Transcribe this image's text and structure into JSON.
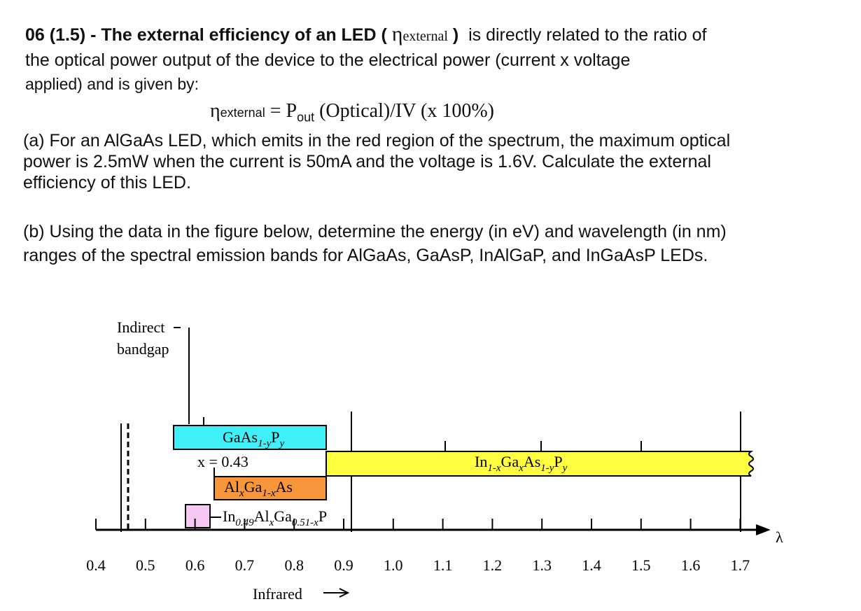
{
  "question": {
    "lead": "06 (1.5) - The external efficiency of an LED (",
    "eta": "η",
    "eta_sub": "external",
    "close": ")",
    "rest": "is directly related to the ratio of",
    "line2": "the optical power output of the device to the electrical power (current x voltage",
    "line3": "applied) and is given by:"
  },
  "formula": {
    "eta": "η",
    "eta_sub": "external",
    "eq": "= P",
    "out": "out",
    "rest": "(Optical)/IV (x 100%)"
  },
  "part_a": [
    "(a) For an AlGaAs LED, which emits in the red region of the spectrum, the maximum optical",
    "power is 2.5mW when the current is 50mA and the voltage is 1.6V. Calculate the external",
    "efficiency of this LED."
  ],
  "part_b": [
    "(b) Using the data in the figure below, determine the energy (in eV) and wavelength (in nm)",
    "ranges of the spectral emission bands for AlGaAs, GaAsP, InAlGaP, and InGaAsP LEDs."
  ],
  "figure": {
    "indirect": [
      "Indirect",
      "bandgap"
    ],
    "x_note": "x = 0.43",
    "infrared": "Infrared",
    "lambda": "λ",
    "ticks": [
      "0.4",
      "0.5",
      "0.6",
      "0.7",
      "0.8",
      "0.9",
      "1.0",
      "1.1",
      "1.2",
      "1.3",
      "1.4",
      "1.5",
      "1.6",
      "1.7"
    ],
    "gaasp": [
      "GaAs",
      "1-y",
      "P",
      "y"
    ],
    "algaas": [
      "Al",
      "x",
      "Ga",
      "1-x",
      "As"
    ],
    "inalgap": [
      "In",
      "0.49",
      "Al",
      "x",
      "Ga",
      "0.51-x",
      "P"
    ],
    "ingaasp": [
      "In",
      "1-x",
      "Ga",
      "x",
      "As",
      "1-y",
      "P",
      "y"
    ]
  }
}
